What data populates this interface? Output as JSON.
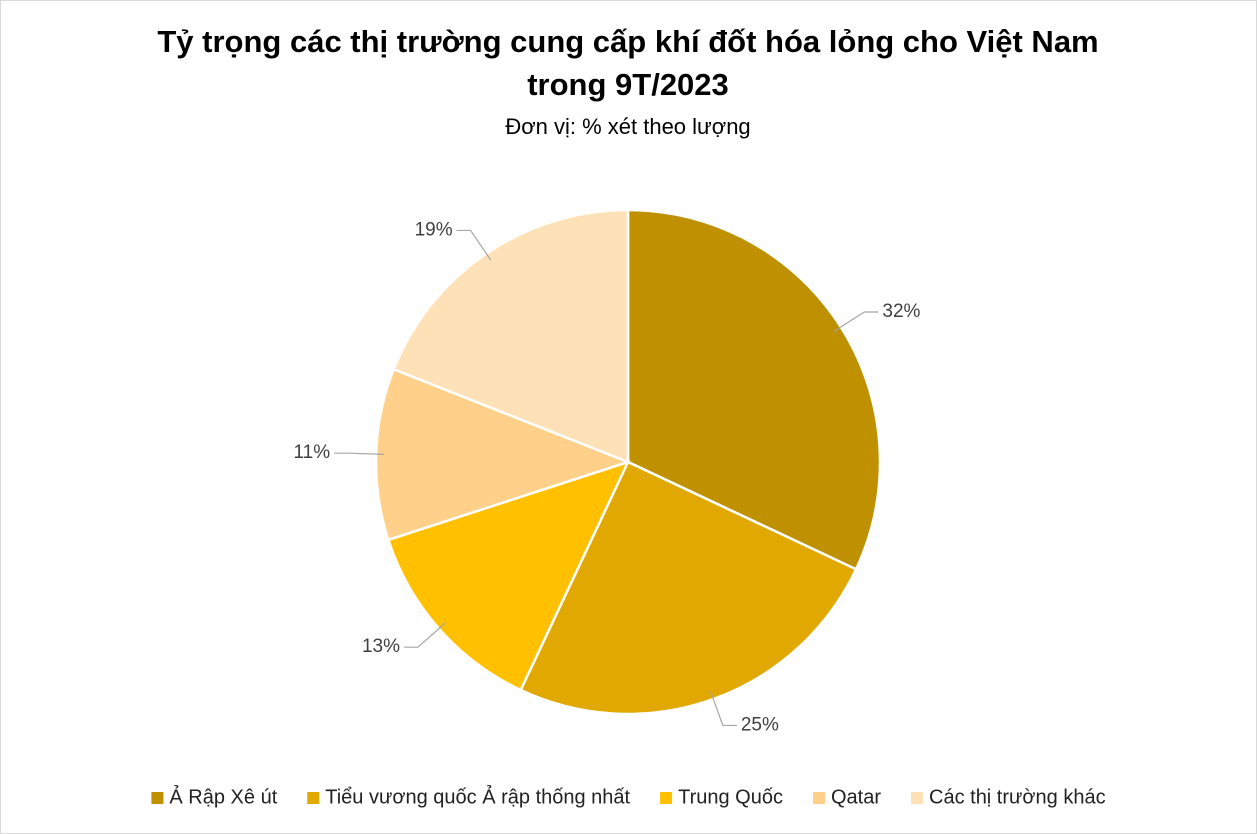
{
  "chart_data": {
    "type": "pie",
    "title": [
      "Tỷ trọng các thị trường cung cấp khí đốt hóa lỏng cho Việt Nam",
      "trong 9T/2023"
    ],
    "subtitle": "Đơn vị: % xét theo lượng",
    "categories": [
      "Ả Rập Xê út",
      "Tiểu vương quốc Ả rập thống nhất",
      "Trung Quốc",
      "Qatar",
      "Các thị trường khác"
    ],
    "values": [
      32,
      25,
      13,
      11,
      19
    ],
    "value_labels": [
      "32%",
      "25%",
      "13%",
      "11%",
      "19%"
    ],
    "colors": [
      "#bf9000",
      "#e0a800",
      "#ffc000",
      "#ffd08a",
      "#ffe1b8"
    ],
    "legend": "bottom"
  }
}
